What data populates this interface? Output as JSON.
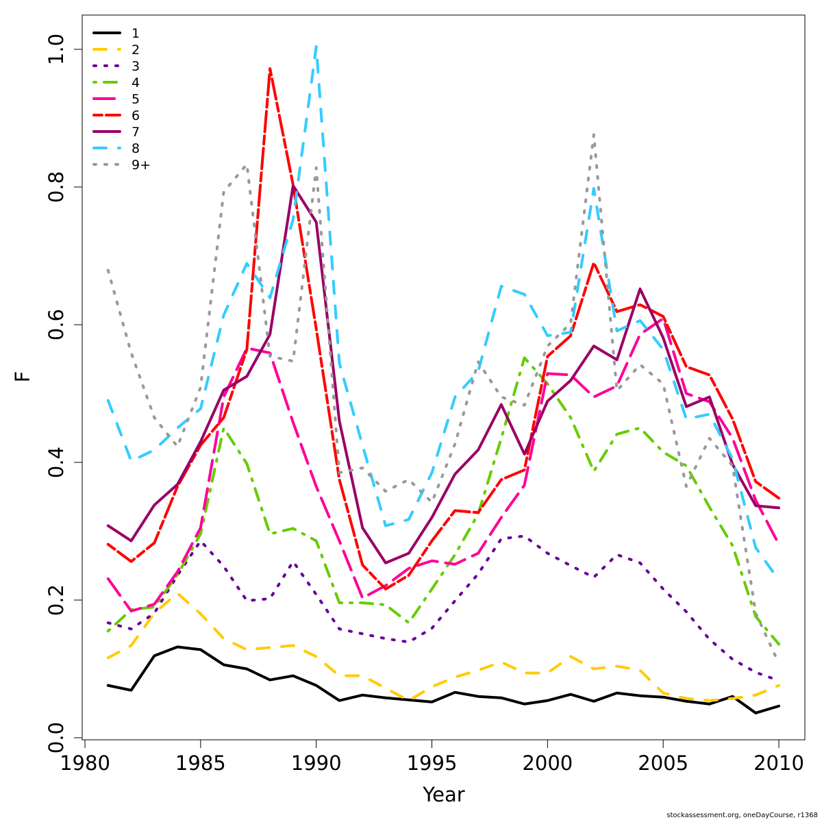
{
  "chart_data": {
    "type": "line",
    "title": "",
    "xlabel": "Year",
    "ylabel": "F",
    "xlim": [
      1980,
      2010
    ],
    "ylim": [
      0,
      1
    ],
    "xticks": [
      1980,
      1985,
      1990,
      1995,
      2000,
      2005,
      2010
    ],
    "yticks": [
      "0.0",
      "0.2",
      "0.4",
      "0.6",
      "0.8",
      "1.0"
    ],
    "grid": false,
    "legend_position": "top-left",
    "x": [
      1981,
      1982,
      1983,
      1984,
      1985,
      1986,
      1987,
      1988,
      1989,
      1990,
      1991,
      1992,
      1993,
      1994,
      1995,
      1996,
      1997,
      1998,
      1999,
      2000,
      2001,
      2002,
      2003,
      2004,
      2005,
      2006,
      2007,
      2008,
      2009,
      2010
    ],
    "series": [
      {
        "name": "1",
        "color": "#000000",
        "dash": "solid",
        "values": [
          0.076,
          0.069,
          0.119,
          0.132,
          0.128,
          0.106,
          0.1,
          0.084,
          0.09,
          0.076,
          0.054,
          0.062,
          0.058,
          0.055,
          0.052,
          0.066,
          0.06,
          0.058,
          0.049,
          0.054,
          0.063,
          0.053,
          0.065,
          0.061,
          0.059,
          0.053,
          0.049,
          0.06,
          0.036,
          0.046
        ]
      },
      {
        "name": "2",
        "color": "#FFCC00",
        "dash": "dashed",
        "values": [
          0.116,
          0.134,
          0.181,
          0.21,
          0.18,
          0.144,
          0.128,
          0.131,
          0.134,
          0.118,
          0.09,
          0.09,
          0.072,
          0.054,
          0.074,
          0.088,
          0.098,
          0.11,
          0.094,
          0.094,
          0.118,
          0.1,
          0.104,
          0.098,
          0.065,
          0.057,
          0.054,
          0.057,
          0.062,
          0.076
        ]
      },
      {
        "name": "3",
        "color": "#660099",
        "dash": "dotted",
        "values": [
          0.167,
          0.158,
          0.181,
          0.236,
          0.286,
          0.249,
          0.199,
          0.202,
          0.256,
          0.208,
          0.158,
          0.151,
          0.144,
          0.139,
          0.159,
          0.199,
          0.238,
          0.289,
          0.293,
          0.268,
          0.25,
          0.233,
          0.266,
          0.254,
          0.216,
          0.183,
          0.143,
          0.114,
          0.095,
          0.083
        ]
      },
      {
        "name": "4",
        "color": "#66CC00",
        "dash": "dotdash",
        "values": [
          0.155,
          0.186,
          0.19,
          0.237,
          0.296,
          0.45,
          0.398,
          0.296,
          0.304,
          0.286,
          0.196,
          0.196,
          0.193,
          0.167,
          0.216,
          0.266,
          0.325,
          0.435,
          0.552,
          0.514,
          0.465,
          0.387,
          0.441,
          0.45,
          0.415,
          0.395,
          0.335,
          0.279,
          0.176,
          0.136
        ]
      },
      {
        "name": "5",
        "color": "#FF0099",
        "dash": "longdash",
        "values": [
          0.231,
          0.184,
          0.194,
          0.241,
          0.305,
          0.495,
          0.566,
          0.559,
          0.458,
          0.365,
          0.286,
          0.203,
          0.221,
          0.246,
          0.257,
          0.252,
          0.268,
          0.32,
          0.367,
          0.529,
          0.527,
          0.495,
          0.511,
          0.586,
          0.609,
          0.5,
          0.488,
          0.435,
          0.345,
          0.281
        ]
      },
      {
        "name": "6",
        "color": "#FF0000",
        "dash": "twodash",
        "values": [
          0.281,
          0.256,
          0.283,
          0.365,
          0.425,
          0.465,
          0.564,
          0.972,
          0.803,
          0.594,
          0.375,
          0.251,
          0.216,
          0.236,
          0.286,
          0.33,
          0.327,
          0.375,
          0.389,
          0.554,
          0.584,
          0.69,
          0.619,
          0.629,
          0.612,
          0.539,
          0.527,
          0.463,
          0.372,
          0.348
        ]
      },
      {
        "name": "7",
        "color": "#990066",
        "dash": "solid",
        "values": [
          0.308,
          0.286,
          0.338,
          0.368,
          0.43,
          0.505,
          0.525,
          0.586,
          0.802,
          0.749,
          0.46,
          0.305,
          0.254,
          0.268,
          0.32,
          0.383,
          0.418,
          0.484,
          0.412,
          0.489,
          0.519,
          0.569,
          0.549,
          0.652,
          0.581,
          0.481,
          0.495,
          0.397,
          0.337,
          0.334
        ]
      },
      {
        "name": "8",
        "color": "#33CCFF",
        "dash": "dashed",
        "values": [
          0.49,
          0.402,
          0.418,
          0.45,
          0.478,
          0.614,
          0.689,
          0.639,
          0.753,
          1.004,
          0.544,
          0.425,
          0.308,
          0.317,
          0.385,
          0.495,
          0.532,
          0.656,
          0.644,
          0.584,
          0.589,
          0.798,
          0.591,
          0.606,
          0.564,
          0.463,
          0.47,
          0.405,
          0.276,
          0.229
        ]
      },
      {
        "name": "9+",
        "color": "#999999",
        "dash": "dotted",
        "values": [
          0.679,
          0.559,
          0.465,
          0.423,
          0.509,
          0.793,
          0.833,
          0.554,
          0.547,
          0.828,
          0.385,
          0.392,
          0.358,
          0.375,
          0.342,
          0.427,
          0.546,
          0.495,
          0.483,
          0.569,
          0.602,
          0.876,
          0.504,
          0.542,
          0.514,
          0.365,
          0.435,
          0.395,
          0.181,
          0.108
        ]
      }
    ]
  },
  "footer": "stockassessment.org, oneDayCourse, r1368"
}
